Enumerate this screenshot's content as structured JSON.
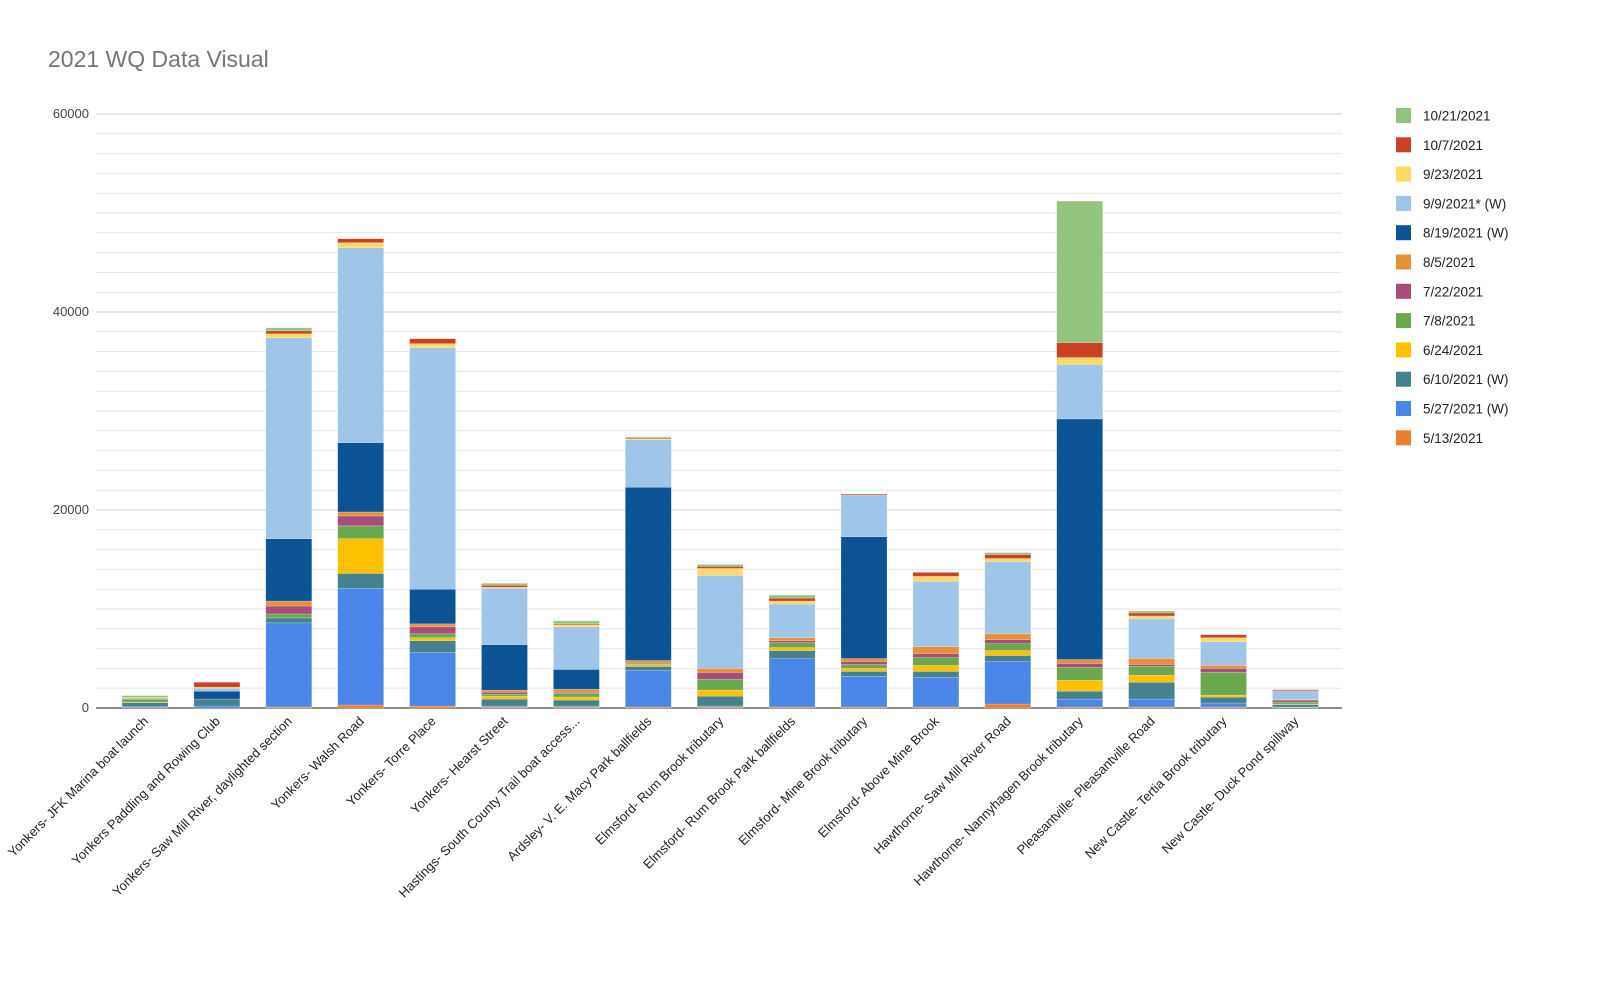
{
  "chart_data": {
    "type": "bar",
    "stacked": true,
    "title": "2021 WQ Data Visual",
    "xlabel": "",
    "ylabel": "",
    "ylim": [
      0,
      60000
    ],
    "yticks": [
      0,
      20000,
      40000,
      60000
    ],
    "grid": true,
    "legend_position": "right",
    "categories": [
      "Yonkers- JFK Marina boat launch",
      "Yonkers Paddling and Rowing Club",
      "Yonkers- Saw Mill River, daylighted section",
      "Yonkers- Walsh Road",
      "Yonkers- Torre Place",
      "Yonkers- Hearst Street",
      "Hastings- South County Trail boat access...",
      "Ardsley- V. E. Macy Park ballfields",
      "Elmsford- Rum Brook tributary",
      "Elmsford- Rum Brook Park ballfields",
      "Elmsford- Mine Brook tributary",
      "Elmsford- Above Mine Brook",
      "Hawthorne- Saw Mill River Road",
      "Hawthorne- Nannyhagen Brook tributary",
      "Pleasantville- Pleasantville Road",
      "New Castle- Tertia Brook tributary",
      "New Castle- Duck Pond spillway"
    ],
    "series": [
      {
        "name": "5/13/2021",
        "color": "#ED7D31",
        "values": [
          50,
          0,
          100,
          300,
          200,
          100,
          100,
          100,
          100,
          100,
          100,
          100,
          400,
          100,
          100,
          100,
          50
        ]
      },
      {
        "name": "5/27/2021 (W)",
        "color": "#4A86E8",
        "values": [
          100,
          200,
          8500,
          11800,
          5400,
          100,
          100,
          3700,
          100,
          4900,
          3100,
          3000,
          4300,
          800,
          800,
          400,
          50
        ]
      },
      {
        "name": "6/10/2021 (W)",
        "color": "#45818E",
        "values": [
          400,
          700,
          500,
          1500,
          1200,
          700,
          600,
          400,
          1000,
          800,
          500,
          600,
          600,
          800,
          1700,
          600,
          250
        ]
      },
      {
        "name": "6/24/2021",
        "color": "#FFC000",
        "values": [
          50,
          0,
          0,
          3500,
          300,
          300,
          300,
          200,
          600,
          300,
          300,
          600,
          500,
          1100,
          700,
          200,
          50
        ]
      },
      {
        "name": "7/8/2021",
        "color": "#6AA84F",
        "values": [
          300,
          0,
          400,
          1300,
          400,
          200,
          400,
          100,
          1100,
          500,
          400,
          800,
          700,
          1300,
          900,
          2300,
          200
        ]
      },
      {
        "name": "7/22/2021",
        "color": "#A64D79",
        "values": [
          50,
          0,
          800,
          1000,
          700,
          200,
          100,
          100,
          700,
          200,
          300,
          400,
          400,
          400,
          200,
          400,
          200
        ]
      },
      {
        "name": "8/5/2021",
        "color": "#E69138",
        "values": [
          50,
          0,
          500,
          400,
          300,
          200,
          300,
          200,
          400,
          300,
          300,
          700,
          600,
          400,
          600,
          300,
          50
        ]
      },
      {
        "name": "8/19/2021 (W)",
        "color": "#0B5394",
        "values": [
          0,
          800,
          6300,
          7000,
          3500,
          4600,
          2000,
          17500,
          0,
          0,
          12300,
          0,
          0,
          24300,
          0,
          0,
          0
        ]
      },
      {
        "name": "9/9/2021* (W)",
        "color": "#9FC5E8",
        "values": [
          0,
          300,
          20300,
          19700,
          24400,
          5700,
          4300,
          4800,
          9400,
          3400,
          4200,
          6600,
          7300,
          5500,
          4000,
          2400,
          900
        ]
      },
      {
        "name": "9/23/2021",
        "color": "#FFD966",
        "values": [
          50,
          100,
          400,
          500,
          400,
          100,
          200,
          100,
          700,
          300,
          0,
          500,
          300,
          700,
          300,
          400,
          0
        ]
      },
      {
        "name": "10/7/2021",
        "color": "#CC4125",
        "values": [
          0,
          500,
          300,
          400,
          500,
          200,
          100,
          100,
          200,
          300,
          100,
          400,
          400,
          1500,
          300,
          300,
          100
        ]
      },
      {
        "name": "10/21/2021",
        "color": "#93C47D",
        "values": [
          200,
          0,
          300,
          0,
          0,
          200,
          300,
          100,
          200,
          300,
          0,
          0,
          200,
          14300,
          200,
          0,
          0
        ]
      }
    ]
  }
}
